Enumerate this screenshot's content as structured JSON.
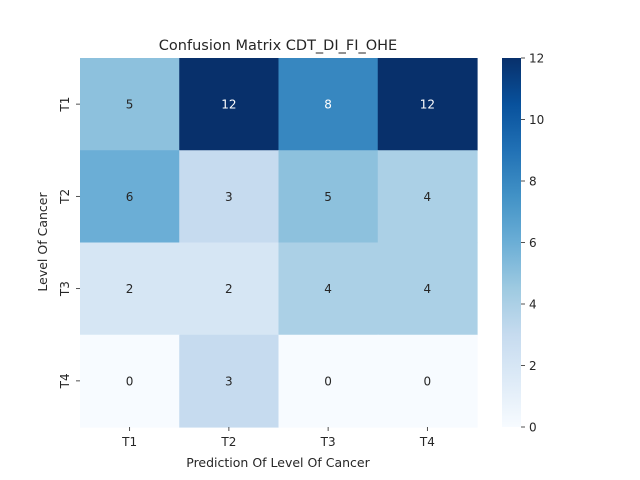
{
  "chart_data": {
    "type": "heatmap",
    "title": "Confusion Matrix CDT_DI_FI_OHE",
    "xlabel": "Prediction Of Level Of Cancer",
    "ylabel": "Level Of Cancer",
    "x_categories": [
      "T1",
      "T2",
      "T3",
      "T4"
    ],
    "y_categories": [
      "T1",
      "T2",
      "T3",
      "T4"
    ],
    "values": [
      [
        5,
        12,
        8,
        12
      ],
      [
        6,
        3,
        5,
        4
      ],
      [
        2,
        2,
        4,
        4
      ],
      [
        0,
        3,
        0,
        0
      ]
    ],
    "colormap": "Blues",
    "vmin": 0,
    "vmax": 12,
    "colorbar_ticks": [
      0,
      2,
      4,
      6,
      8,
      10,
      12
    ],
    "annotate": true,
    "grid": false
  }
}
